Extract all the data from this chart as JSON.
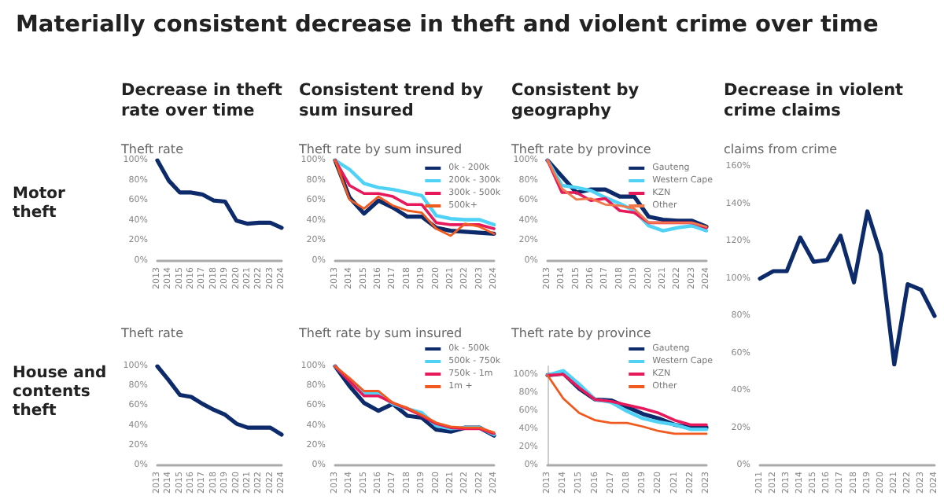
{
  "chart_data": [
    {
      "type": "other",
      "title": "Materially consistent decrease in theft and violent crime over time",
      "annotations": [
        "Motor theft",
        "House and contents theft"
      ]
    },
    {
      "type": "line",
      "title": "Decrease in theft rate over time",
      "subtitle": "Theft rate",
      "categories": [
        "2013",
        "2014",
        "2015",
        "2016",
        "2017",
        "2018",
        "2019",
        "2020",
        "2021",
        "2022",
        "2023",
        "2024"
      ],
      "series": [
        {
          "color": "#0d2a6b",
          "values": [
            100,
            80,
            68,
            68,
            66,
            60,
            59,
            40,
            37,
            38,
            38,
            33
          ]
        }
      ],
      "ylim": [
        0,
        100
      ],
      "yticks": [
        {
          "value": 0,
          "label": "0%"
        },
        {
          "value": 20,
          "label": "20%"
        },
        {
          "value": 40,
          "label": "40%"
        },
        {
          "value": 60,
          "label": "60%"
        },
        {
          "value": 80,
          "label": "80%"
        },
        {
          "value": 100,
          "label": "100%"
        }
      ],
      "marker": "none",
      "legend": false
    },
    {
      "type": "line",
      "title": "Consistent trend by sum insured",
      "subtitle": "Theft rate by sum insured",
      "categories": [
        "2013",
        "2014",
        "2015",
        "2016",
        "2017",
        "2018",
        "2019",
        "2020",
        "2021",
        "2022",
        "2023",
        "2024"
      ],
      "series": [
        {
          "name": "0k - 200k",
          "color": "#0d2a6b",
          "values": [
            100,
            63,
            47,
            60,
            53,
            44,
            44,
            33,
            30,
            29,
            28,
            27
          ]
        },
        {
          "name": "200k - 300k",
          "color": "#4fd2f5",
          "values": [
            100,
            91,
            77,
            73,
            71,
            68,
            65,
            45,
            42,
            41,
            41,
            36
          ]
        },
        {
          "name": "300k - 500k",
          "color": "#e8195a",
          "values": [
            100,
            75,
            67,
            67,
            64,
            56,
            56,
            38,
            36,
            36,
            36,
            32
          ]
        },
        {
          "name": "500k+",
          "color": "#f05a1e",
          "values": [
            100,
            61,
            52,
            64,
            55,
            50,
            48,
            32,
            25,
            37,
            34,
            27
          ]
        }
      ],
      "ylim": [
        0,
        100
      ],
      "yticks": [
        {
          "value": 0,
          "label": "0%"
        },
        {
          "value": 20,
          "label": "20%"
        },
        {
          "value": 40,
          "label": "40%"
        },
        {
          "value": 60,
          "label": "60%"
        },
        {
          "value": 80,
          "label": "80%"
        },
        {
          "value": 100,
          "label": "100%"
        }
      ],
      "marker": "none",
      "legend": "top right"
    },
    {
      "type": "line",
      "title": "Consistent by geography",
      "subtitle": "Theft rate by province",
      "categories": [
        "2013",
        "2014",
        "2015",
        "2016",
        "2017",
        "2018",
        "2019",
        "2020",
        "2021",
        "2022",
        "2023",
        "2024"
      ],
      "series": [
        {
          "name": "Gauteng",
          "color": "#0d2a6b",
          "values": [
            100,
            84,
            68,
            71,
            71,
            64,
            64,
            44,
            41,
            40,
            40,
            34
          ]
        },
        {
          "name": "Western Cape",
          "color": "#4fd2f5",
          "values": [
            100,
            75,
            73,
            70,
            63,
            57,
            50,
            35,
            30,
            33,
            35,
            30
          ]
        },
        {
          "name": "KZN",
          "color": "#e8195a",
          "values": [
            100,
            68,
            68,
            60,
            62,
            50,
            48,
            38,
            38,
            38,
            38,
            33
          ]
        },
        {
          "name": "Other",
          "color": "#f0784a",
          "values": [
            100,
            72,
            61,
            62,
            56,
            55,
            52,
            38,
            38,
            38,
            38,
            34
          ]
        }
      ],
      "ylim": [
        0,
        100
      ],
      "yticks": [
        {
          "value": 0,
          "label": "0%"
        },
        {
          "value": 20,
          "label": "20%"
        },
        {
          "value": 40,
          "label": "40%"
        },
        {
          "value": 60,
          "label": "60%"
        },
        {
          "value": 80,
          "label": "80%"
        },
        {
          "value": 100,
          "label": "100%"
        }
      ],
      "marker": "none",
      "legend": "top right"
    },
    {
      "type": "line",
      "title": "Decrease in violent crime claims",
      "subtitle": "claims from crime",
      "categories": [
        "2011",
        "2012",
        "2013",
        "2014",
        "2015",
        "2016",
        "2017",
        "2018",
        "2019",
        "2020",
        "2021",
        "2022",
        "2023",
        "2024"
      ],
      "series": [
        {
          "color": "#0d2a6b",
          "values": [
            100,
            104,
            104,
            122,
            109,
            110,
            123,
            98,
            136,
            113,
            54,
            97,
            94,
            80
          ]
        }
      ],
      "ylim": [
        0,
        160
      ],
      "yticks": [
        {
          "value": 0,
          "label": "0%"
        },
        {
          "value": 20,
          "label": "20%"
        },
        {
          "value": 40,
          "label": "40%"
        },
        {
          "value": 60,
          "label": "60%"
        },
        {
          "value": 80,
          "label": "80%"
        },
        {
          "value": 100,
          "label": "100%"
        },
        {
          "value": 120,
          "label": "120%"
        },
        {
          "value": 140,
          "label": "140%"
        },
        {
          "value": 160,
          "label": "160%"
        }
      ],
      "marker": "none",
      "legend": false
    },
    {
      "type": "line",
      "title": "Theft rate",
      "categories": [
        "2013",
        "2014",
        "2015",
        "2016",
        "2017",
        "2018",
        "2019",
        "2020",
        "2021",
        "2022",
        "2022",
        "2024"
      ],
      "series": [
        {
          "color": "#0d2a6b",
          "values": [
            100,
            86,
            71,
            69,
            62,
            56,
            51,
            42,
            38,
            38,
            38,
            31
          ]
        }
      ],
      "ylim": [
        0,
        100
      ],
      "yticks": [
        {
          "value": 0,
          "label": "0%"
        },
        {
          "value": 20,
          "label": "20%"
        },
        {
          "value": 40,
          "label": "40%"
        },
        {
          "value": 60,
          "label": "60%"
        },
        {
          "value": 80,
          "label": "80%"
        },
        {
          "value": 100,
          "label": "100%"
        }
      ],
      "marker": "none",
      "legend": false
    },
    {
      "type": "line",
      "title": "Theft rate by sum insured",
      "categories": [
        "2013",
        "2014",
        "2015",
        "2016",
        "2017",
        "2018",
        "2019",
        "2020",
        "2021",
        "2022",
        "2022",
        "2024"
      ],
      "series": [
        {
          "name": "0k - 500k",
          "color": "#0d2a6b",
          "values": [
            100,
            80,
            63,
            55,
            62,
            50,
            48,
            36,
            34,
            38,
            38,
            30
          ]
        },
        {
          "name": "500k - 750k",
          "color": "#4fd2f5",
          "values": [
            100,
            86,
            72,
            72,
            62,
            57,
            53,
            40,
            37,
            38,
            38,
            31
          ]
        },
        {
          "name": "750k - 1m",
          "color": "#e8195a",
          "values": [
            100,
            85,
            70,
            70,
            63,
            57,
            50,
            42,
            38,
            37,
            37,
            32
          ]
        },
        {
          "name": "1m +",
          "color": "#f05a1e",
          "values": [
            100,
            88,
            75,
            75,
            63,
            58,
            51,
            43,
            39,
            38,
            38,
            33
          ]
        }
      ],
      "ylim": [
        0,
        100
      ],
      "yticks": [
        {
          "value": 0,
          "label": "0%"
        },
        {
          "value": 20,
          "label": "20%"
        },
        {
          "value": 40,
          "label": "40%"
        },
        {
          "value": 60,
          "label": "60%"
        },
        {
          "value": 80,
          "label": "80%"
        },
        {
          "value": 100,
          "label": "100%"
        }
      ],
      "marker": "none",
      "legend": "top right"
    },
    {
      "type": "line",
      "title": "Theft rate by province",
      "categories": [
        "2013",
        "2014",
        "2015",
        "2016",
        "2017",
        "2018",
        "2019",
        "2020",
        "2021",
        "2022",
        "2023"
      ],
      "series": [
        {
          "name": "Gauteng",
          "color": "#0d2a6b",
          "values": [
            100,
            102,
            85,
            73,
            72,
            65,
            57,
            52,
            45,
            42,
            42
          ]
        },
        {
          "name": "Western Cape",
          "color": "#4fd2f5",
          "values": [
            100,
            105,
            90,
            73,
            70,
            60,
            52,
            48,
            45,
            40,
            40
          ]
        },
        {
          "name": "KZN",
          "color": "#e8195a",
          "values": [
            100,
            101,
            86,
            73,
            71,
            67,
            63,
            58,
            50,
            45,
            45
          ]
        },
        {
          "name": "Other",
          "color": "#f05a1e",
          "values": [
            100,
            74,
            58,
            50,
            47,
            47,
            43,
            38,
            35,
            35,
            35
          ]
        }
      ],
      "ylim": [
        0,
        110
      ],
      "yticks": [
        {
          "value": 0,
          "label": "0%"
        },
        {
          "value": 20,
          "label": "20%"
        },
        {
          "value": 40,
          "label": "40%"
        },
        {
          "value": 60,
          "label": "60%"
        },
        {
          "value": 80,
          "label": "80%"
        },
        {
          "value": 100,
          "label": "100%"
        }
      ],
      "marker": "none",
      "legend": "top right"
    }
  ]
}
